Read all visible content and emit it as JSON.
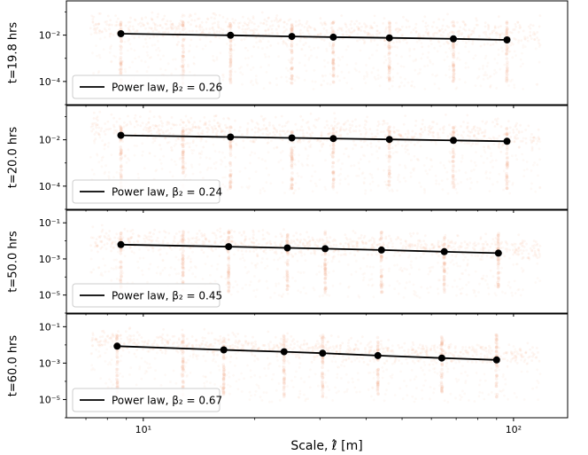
{
  "figure": {
    "xlabel": "Scale, ℓ̂ [m]",
    "xaxis": {
      "type": "log",
      "xlim": [
        6.2,
        140
      ],
      "major_ticks": [
        10,
        100
      ],
      "major_tick_labels": [
        "10¹",
        "10²"
      ]
    }
  },
  "colors": {
    "scatter": "#f4a582",
    "line": "#000000",
    "frame": "#000000",
    "background": "#ffffff"
  },
  "chart_data": [
    {
      "type": "line",
      "ylabel": "t=19.8 hrs",
      "yscale": "log",
      "ylim": [
        1e-05,
        0.3
      ],
      "yticks": [
        {
          "value": 0.01,
          "label": "10⁻²"
        },
        {
          "value": 0.0001,
          "label": "10⁻⁴"
        }
      ],
      "legend": {
        "label": "Power law, β₂ = 0.26",
        "placement": "lower-left"
      },
      "series": [
        {
          "name": "Power law, β₂ = 0.26",
          "x": [
            8.7,
            17.2,
            25.2,
            32.6,
            46.2,
            68.8,
            96.0
          ],
          "y": [
            0.0115,
            0.0098,
            0.0088,
            0.0082,
            0.0076,
            0.0069,
            0.0062
          ]
        }
      ]
    },
    {
      "type": "line",
      "ylabel": "t=20.0 hrs",
      "yscale": "log",
      "ylim": [
        1e-05,
        0.3
      ],
      "yticks": [
        {
          "value": 0.01,
          "label": "10⁻²"
        },
        {
          "value": 0.0001,
          "label": "10⁻⁴"
        }
      ],
      "legend": {
        "label": "Power law, β₂ = 0.24",
        "placement": "lower-left"
      },
      "series": [
        {
          "name": "Power law, β₂ = 0.24",
          "x": [
            8.7,
            17.2,
            25.2,
            32.6,
            46.2,
            68.8,
            96.0
          ],
          "y": [
            0.0155,
            0.0132,
            0.012,
            0.0113,
            0.0104,
            0.0094,
            0.0086
          ]
        }
      ]
    },
    {
      "type": "line",
      "ylabel": "t=50.0 hrs",
      "yscale": "log",
      "ylim": [
        1e-06,
        0.5
      ],
      "yticks": [
        {
          "value": 0.1,
          "label": "10⁻¹"
        },
        {
          "value": 0.001,
          "label": "10⁻³"
        },
        {
          "value": 1e-05,
          "label": "10⁻⁵"
        }
      ],
      "legend": {
        "label": "Power law, β₂ = 0.45",
        "placement": "lower-left"
      },
      "series": [
        {
          "name": "Power law, β₂ = 0.45",
          "x": [
            8.7,
            17.0,
            24.5,
            31.0,
            44.0,
            65.0,
            91.0
          ],
          "y": [
            0.0062,
            0.0048,
            0.0041,
            0.0037,
            0.0031,
            0.0025,
            0.0021
          ]
        }
      ]
    },
    {
      "type": "line",
      "ylabel": "t=60.0 hrs",
      "yscale": "log",
      "ylim": [
        1e-06,
        0.5
      ],
      "yticks": [
        {
          "value": 0.1,
          "label": "10⁻¹"
        },
        {
          "value": 0.001,
          "label": "10⁻³"
        },
        {
          "value": 1e-05,
          "label": "10⁻⁵"
        }
      ],
      "legend": {
        "label": "Power law, β₂ = 0.67",
        "placement": "lower-left"
      },
      "series": [
        {
          "name": "Power law, β₂ = 0.67",
          "x": [
            8.5,
            16.5,
            24.0,
            30.5,
            43.0,
            64.0,
            90.0
          ],
          "y": [
            0.0085,
            0.0053,
            0.0042,
            0.0035,
            0.0026,
            0.0019,
            0.0015
          ]
        }
      ]
    }
  ]
}
